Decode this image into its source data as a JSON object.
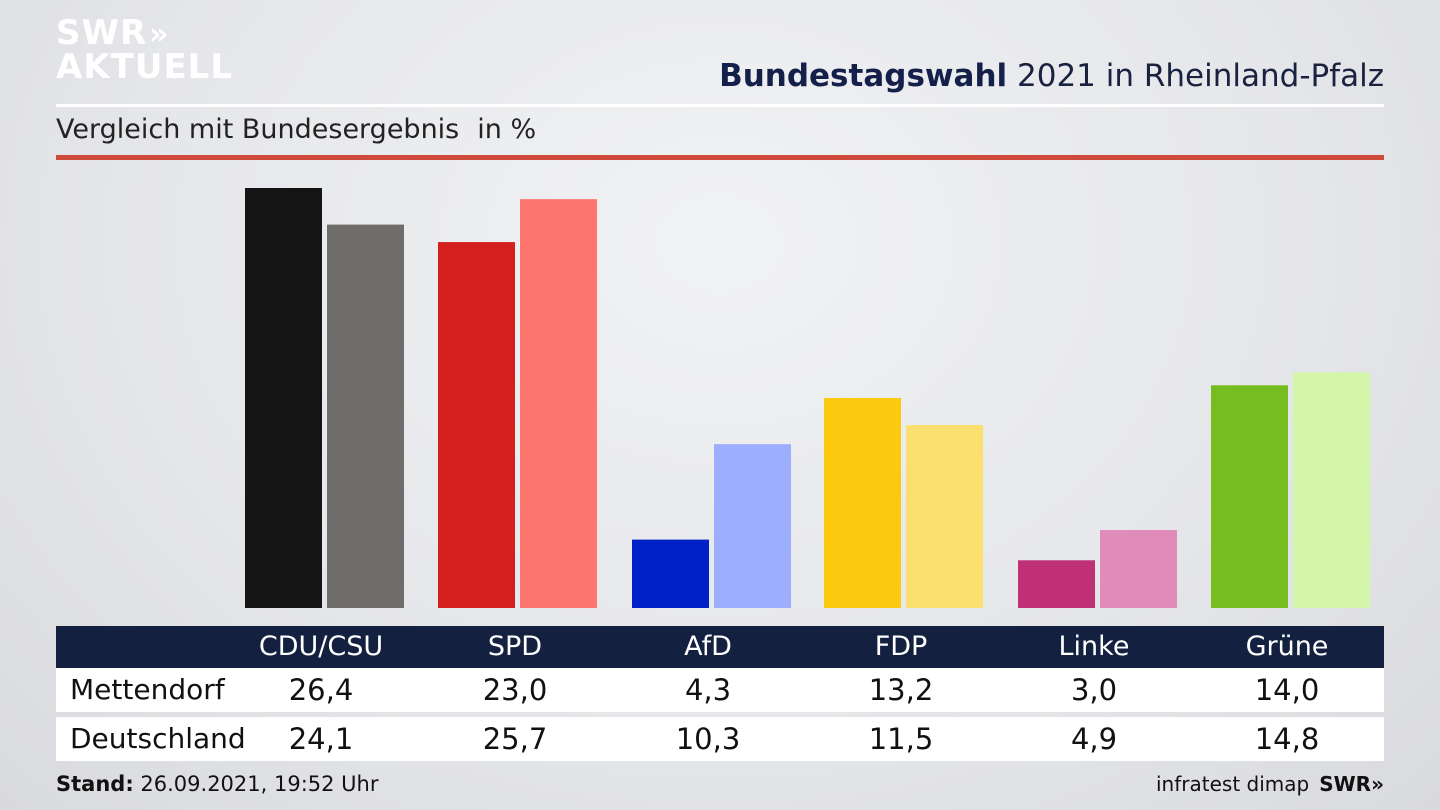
{
  "logo": {
    "line1": "SWR",
    "line2": "AKTUELL",
    "chevrons": "»"
  },
  "header": {
    "title_bold": "Bundestagswahl",
    "title_rest": " 2021 in Rheinland-Pfalz",
    "subtitle": "Vergleich mit Bundesergebnis",
    "unit": "in %"
  },
  "chart_data": {
    "type": "bar",
    "title": "Bundestagswahl 2021 in Rheinland-Pfalz",
    "subtitle": "Vergleich mit Bundesergebnis",
    "ylabel": "in %",
    "categories": [
      "CDU/CSU",
      "SPD",
      "AfD",
      "FDP",
      "Linke",
      "Grüne"
    ],
    "series": [
      {
        "name": "Mettendorf",
        "values": [
          26.4,
          23.0,
          4.3,
          13.2,
          3.0,
          14.0
        ],
        "colors": [
          "#141414",
          "#d41f1f",
          "#0020c8",
          "#fdc90f",
          "#bf3075",
          "#77bd1f"
        ]
      },
      {
        "name": "Deutschland",
        "values": [
          24.1,
          25.7,
          10.3,
          11.5,
          4.9,
          14.8
        ],
        "colors": [
          "#6f6d6b",
          "#ff7570",
          "#9daefe",
          "#fce06f",
          "#e18bba",
          "#d4f6a9"
        ]
      }
    ],
    "ylim": [
      0,
      26.4
    ],
    "grid": false,
    "legend": "table-below"
  },
  "table": {
    "headers": [
      "CDU/CSU",
      "SPD",
      "AfD",
      "FDP",
      "Linke",
      "Grüne"
    ],
    "rows": [
      {
        "label": "Mettendorf",
        "values": [
          "26,4",
          "23,0",
          "4,3",
          "13,2",
          "3,0",
          "14,0"
        ]
      },
      {
        "label": "Deutschland",
        "values": [
          "24,1",
          "25,7",
          "10,3",
          "11,5",
          "4,9",
          "14,8"
        ]
      }
    ]
  },
  "footer": {
    "stand_label": "Stand:",
    "stand_value": " 26.09.2021, 19:52 Uhr",
    "source": "infratest dimap",
    "brand": "SWR»"
  }
}
